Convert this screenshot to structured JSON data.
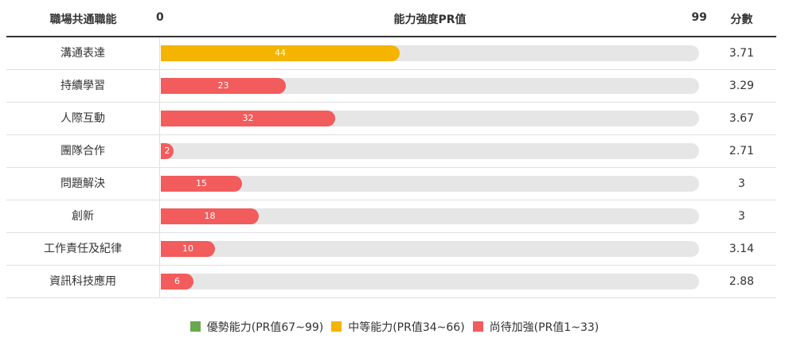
{
  "header": {
    "category_label": "職場共通職能",
    "axis_min_label": "0",
    "axis_title": "能力強度PR值",
    "axis_max_label": "99",
    "score_label": "分數"
  },
  "colors": {
    "strong": "#6aa84f",
    "medium": "#f4b400",
    "weak": "#f25c5c",
    "track": "#e6e6e6"
  },
  "chart_data": {
    "type": "bar",
    "orientation": "horizontal",
    "xlim": [
      0,
      99
    ],
    "categories": [
      "溝通表達",
      "持續學習",
      "人際互動",
      "團隊合作",
      "問題解決",
      "創新",
      "工作責任及紀律",
      "資訊科技應用"
    ],
    "values": [
      44,
      23,
      32,
      2,
      15,
      18,
      10,
      6
    ],
    "value_labels": [
      "44",
      "23",
      "32",
      "2",
      "15",
      "18",
      "10",
      "6"
    ],
    "scores": [
      "3.71",
      "3.29",
      "3.67",
      "2.71",
      "3",
      "3",
      "3.14",
      "2.88"
    ],
    "legend": [
      {
        "label": "優勢能力(PR值67~99)",
        "color": "#6aa84f",
        "range": [
          67,
          99
        ]
      },
      {
        "label": "中等能力(PR值34~66)",
        "color": "#f4b400",
        "range": [
          34,
          66
        ]
      },
      {
        "label": "尚待加強(PR值1~33)",
        "color": "#f25c5c",
        "range": [
          1,
          33
        ]
      }
    ]
  }
}
